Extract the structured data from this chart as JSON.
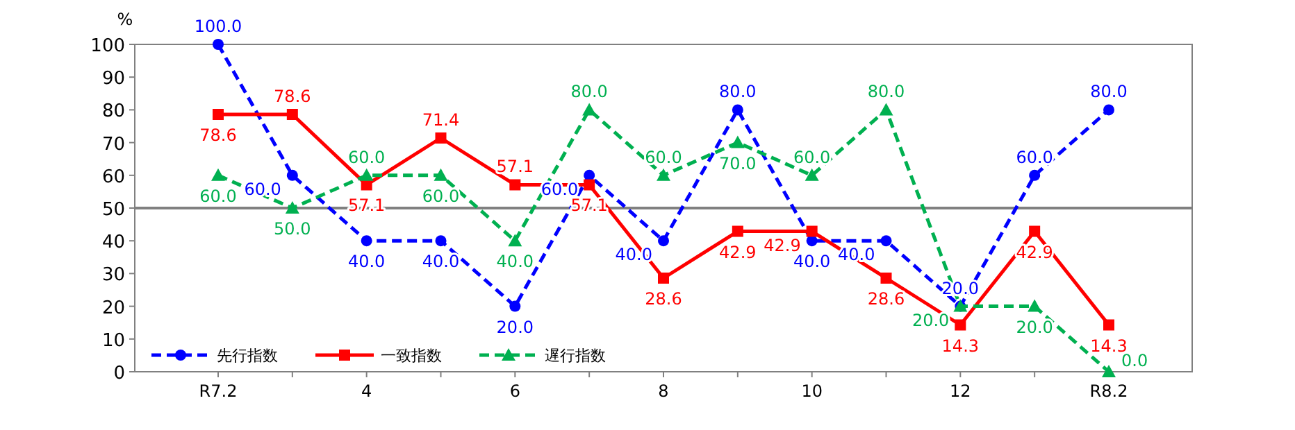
{
  "chart_data": {
    "type": "line",
    "ylabel": "%",
    "categories": [
      "R7.2",
      null,
      "4",
      null,
      "6",
      null,
      "8",
      null,
      "10",
      null,
      "12",
      null,
      "R8.2"
    ],
    "ylim": [
      0,
      100
    ],
    "yticks": [
      0,
      10,
      20,
      30,
      40,
      50,
      60,
      70,
      80,
      90,
      100
    ],
    "grid": false,
    "legend": "bottom left",
    "ref_lines": [
      {
        "axis": "y",
        "value": 50,
        "color": "#808080"
      }
    ],
    "series": [
      {
        "name": "先行指数",
        "color": "#0000ff",
        "line_style": "dashed",
        "marker": "circle",
        "values": [
          100,
          60,
          40,
          40,
          20,
          60,
          40,
          80,
          40,
          40,
          20,
          60,
          80
        ],
        "value_labels": [
          "100.0",
          "60.0",
          "40.0",
          "40.0",
          "20.0",
          "60.0",
          "40.0",
          "80.0",
          "40.0",
          "40.0",
          "20.0",
          "60.0",
          "80.0"
        ]
      },
      {
        "name": "一致指数",
        "color": "#ff0000",
        "line_style": "solid",
        "marker": "square",
        "values": [
          78.6,
          78.6,
          57.1,
          71.4,
          57.1,
          57.1,
          28.6,
          42.9,
          42.9,
          28.6,
          14.3,
          42.9,
          14.3
        ],
        "value_labels": [
          "78.6",
          "78.6",
          "57.1",
          "71.4",
          "57.1",
          "57.1",
          "28.6",
          "42.9",
          "42.9",
          "28.6",
          "14.3",
          "42.9",
          "14.3"
        ]
      },
      {
        "name": "遅行指数",
        "color": "#00b050",
        "line_style": "dashed",
        "marker": "triangle",
        "values": [
          60,
          50,
          60,
          60,
          40,
          80,
          60,
          70,
          60,
          80,
          20,
          20,
          0
        ],
        "value_labels": [
          "60.0",
          "50.0",
          "60.0",
          "60.0",
          "40.0",
          "80.0",
          "60.0",
          "70.0",
          "60.0",
          "80.0",
          "20.0",
          "20.0",
          "0.0"
        ]
      }
    ]
  }
}
